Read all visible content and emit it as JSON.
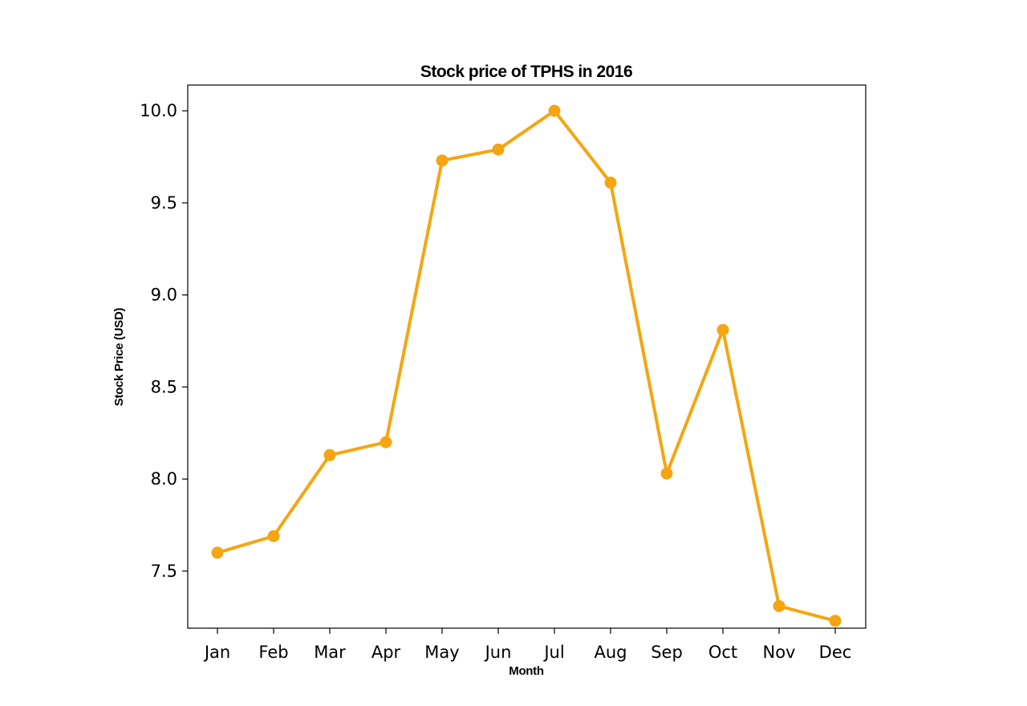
{
  "chart_data": {
    "type": "line",
    "title": "Stock price of TPHS in 2016",
    "xlabel": "Month",
    "ylabel": "Stock Price (USD)",
    "categories": [
      "Jan",
      "Feb",
      "Mar",
      "Apr",
      "May",
      "Jun",
      "Jul",
      "Aug",
      "Sep",
      "Oct",
      "Nov",
      "Dec"
    ],
    "series": [
      {
        "values": [
          7.6,
          7.69,
          8.13,
          8.2,
          9.73,
          9.79,
          10.0,
          9.61,
          8.03,
          8.81,
          7.31,
          7.23
        ]
      }
    ],
    "ylim": [
      7.19,
      10.14
    ],
    "yticks": [
      "7.5",
      "8.0",
      "8.5",
      "9.0",
      "9.5",
      "10.0"
    ],
    "line_color": "#F5A511",
    "grid": false,
    "legend": "none"
  }
}
